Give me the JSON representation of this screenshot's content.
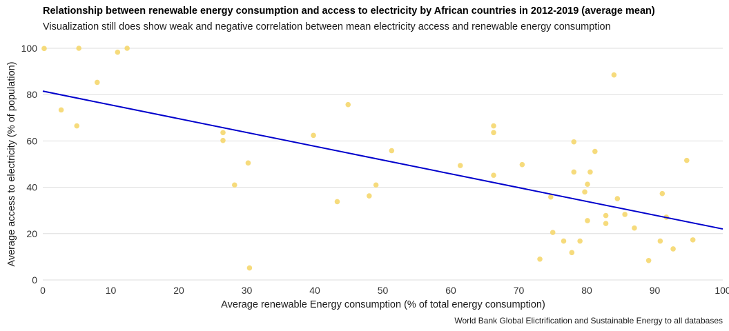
{
  "chart_data": {
    "type": "scatter",
    "title": "Relationship between renewable energy consumption and access to electricity by African countries in 2012-2019 (average mean)",
    "subtitle": "Visualization still does show weak and negative correlation between mean electricity access and renewable energy consumption",
    "caption": "World Bank Global Elictrification and Sustainable Energy to all databases",
    "xlabel": "Average renewable Energy consumption (% of total energy consumption)",
    "ylabel": "Average access to electricity (% of population)",
    "xlim": [
      0,
      100
    ],
    "ylim": [
      0,
      100
    ],
    "xticks": [
      0,
      10,
      20,
      30,
      40,
      50,
      60,
      70,
      80,
      90,
      100
    ],
    "yticks": [
      0,
      20,
      40,
      60,
      80,
      100
    ],
    "grid": "horizontal",
    "point_color": "#f5d76e",
    "line_color": "#0000cc",
    "trend_line": {
      "x": [
        0,
        100
      ],
      "y": [
        81.5,
        22
      ]
    },
    "points": [
      {
        "x": 0.2,
        "y": 99.9
      },
      {
        "x": 2.7,
        "y": 73.4
      },
      {
        "x": 5.0,
        "y": 66.5
      },
      {
        "x": 5.3,
        "y": 100
      },
      {
        "x": 8.0,
        "y": 85.3
      },
      {
        "x": 11.0,
        "y": 98.3
      },
      {
        "x": 12.4,
        "y": 100
      },
      {
        "x": 26.5,
        "y": 63.6
      },
      {
        "x": 26.5,
        "y": 60.2
      },
      {
        "x": 28.2,
        "y": 41.0
      },
      {
        "x": 30.2,
        "y": 50.5
      },
      {
        "x": 30.4,
        "y": 5.2
      },
      {
        "x": 39.8,
        "y": 62.4
      },
      {
        "x": 43.3,
        "y": 33.8
      },
      {
        "x": 44.9,
        "y": 75.7
      },
      {
        "x": 48.0,
        "y": 36.3
      },
      {
        "x": 49.0,
        "y": 41.0
      },
      {
        "x": 51.3,
        "y": 55.8
      },
      {
        "x": 61.4,
        "y": 49.4
      },
      {
        "x": 66.3,
        "y": 66.5
      },
      {
        "x": 66.3,
        "y": 63.6
      },
      {
        "x": 66.3,
        "y": 45.2
      },
      {
        "x": 70.5,
        "y": 49.8
      },
      {
        "x": 73.1,
        "y": 9.0
      },
      {
        "x": 74.7,
        "y": 35.8
      },
      {
        "x": 75.0,
        "y": 20.5
      },
      {
        "x": 76.6,
        "y": 16.8
      },
      {
        "x": 77.8,
        "y": 11.8
      },
      {
        "x": 78.1,
        "y": 59.6
      },
      {
        "x": 78.1,
        "y": 46.6
      },
      {
        "x": 79.0,
        "y": 16.8
      },
      {
        "x": 79.7,
        "y": 38.0
      },
      {
        "x": 80.1,
        "y": 41.3
      },
      {
        "x": 80.1,
        "y": 25.6
      },
      {
        "x": 80.5,
        "y": 46.6
      },
      {
        "x": 81.2,
        "y": 55.5
      },
      {
        "x": 82.8,
        "y": 27.8
      },
      {
        "x": 82.8,
        "y": 24.4
      },
      {
        "x": 84.0,
        "y": 88.5
      },
      {
        "x": 84.5,
        "y": 35.1
      },
      {
        "x": 85.6,
        "y": 28.3
      },
      {
        "x": 87.0,
        "y": 22.4
      },
      {
        "x": 89.1,
        "y": 8.4
      },
      {
        "x": 90.8,
        "y": 16.8
      },
      {
        "x": 91.1,
        "y": 37.3
      },
      {
        "x": 91.7,
        "y": 27.1
      },
      {
        "x": 92.7,
        "y": 13.4
      },
      {
        "x": 94.7,
        "y": 51.6
      },
      {
        "x": 95.6,
        "y": 17.3
      }
    ]
  }
}
